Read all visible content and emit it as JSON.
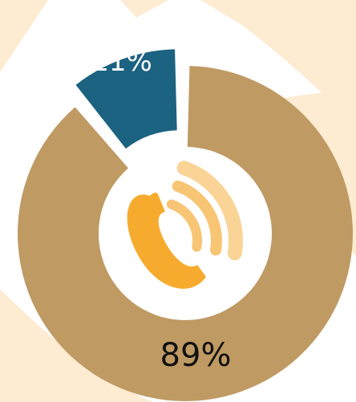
{
  "chart_data": {
    "type": "pie",
    "variant": "donut-exploded",
    "categories": [
      "",
      ""
    ],
    "values": [
      89,
      11
    ],
    "labels": [
      "89%",
      "11%"
    ],
    "colors": [
      "#bf9a63",
      "#1c6281"
    ],
    "label_colors": [
      "#111111",
      "#ffffff"
    ],
    "center_icon": "phone-ringing-icon",
    "icon_colors": {
      "handset": "#f6ab2e",
      "waves": "#f8c574"
    },
    "background_colors": [
      "#ffffff",
      "#fdebd2"
    ]
  }
}
